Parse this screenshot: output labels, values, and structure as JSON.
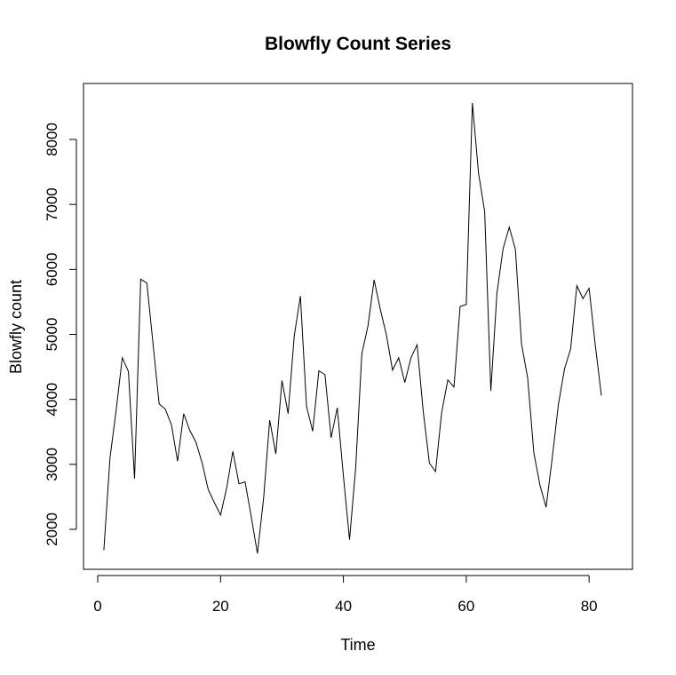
{
  "chart_data": {
    "type": "line",
    "title": "Blowfly Count Series",
    "xlabel": "Time",
    "ylabel": "Blowfly count",
    "xlim": [
      0,
      82
    ],
    "ylim": [
      1620,
      8560
    ],
    "xticks": [
      0,
      20,
      40,
      60,
      80
    ],
    "yticks": [
      2000,
      3000,
      4000,
      5000,
      6000,
      7000,
      8000
    ],
    "grid": false,
    "legend": "none",
    "line_color": "#000000",
    "x": [
      1,
      2,
      3,
      4,
      5,
      6,
      7,
      8,
      9,
      10,
      11,
      12,
      13,
      14,
      15,
      16,
      17,
      18,
      19,
      20,
      21,
      22,
      23,
      24,
      25,
      26,
      27,
      28,
      29,
      30,
      31,
      32,
      33,
      34,
      35,
      36,
      37,
      38,
      39,
      40,
      41,
      42,
      43,
      44,
      45,
      46,
      47,
      48,
      49,
      50,
      51,
      52,
      53,
      54,
      55,
      56,
      57,
      58,
      59,
      60,
      61,
      62,
      63,
      64,
      65,
      66,
      67,
      68,
      69,
      70,
      71,
      72,
      73,
      74,
      75,
      76,
      77,
      78,
      79,
      80,
      81,
      82
    ],
    "y": [
      1680,
      3100,
      3830,
      4640,
      4430,
      2780,
      5850,
      5790,
      4860,
      3930,
      3850,
      3610,
      3050,
      3780,
      3520,
      3340,
      3020,
      2610,
      2410,
      2220,
      2640,
      3200,
      2700,
      2730,
      2190,
      1630,
      2470,
      3680,
      3160,
      4290,
      3780,
      4980,
      5590,
      3890,
      3510,
      4440,
      4380,
      3410,
      3870,
      2820,
      1840,
      2950,
      4700,
      5130,
      5840,
      5390,
      4990,
      4450,
      4640,
      4260,
      4640,
      4840,
      3810,
      3020,
      2890,
      3800,
      4300,
      4190,
      5430,
      5460,
      8560,
      7480,
      6890,
      4130,
      5640,
      6320,
      6650,
      6310,
      4850,
      4330,
      3180,
      2680,
      2340,
      3100,
      3920,
      4470,
      4780,
      5750,
      5550,
      5710,
      4840,
      4060
    ]
  }
}
